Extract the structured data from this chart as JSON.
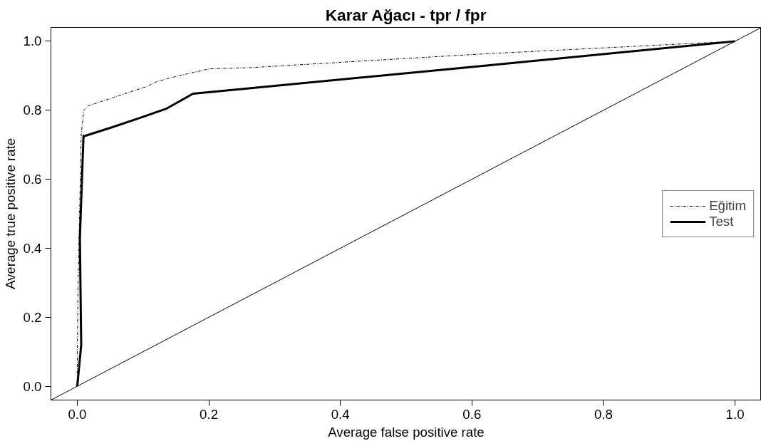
{
  "chart_data": {
    "type": "line",
    "title": "Karar Ağacı - tpr / fpr",
    "xlabel": "Average false positive rate",
    "ylabel": "Average true positive rate",
    "xlim": [
      -0.04,
      1.04
    ],
    "ylim": [
      -0.04,
      1.04
    ],
    "xticks": [
      {
        "value": 0,
        "label": "0.0"
      },
      0.2,
      0.4,
      0.6,
      0.8,
      {
        "value": 1,
        "label": "1.0"
      }
    ],
    "yticks": [
      {
        "value": 0,
        "label": "0.0"
      },
      0.2,
      0.4,
      0.6,
      0.8,
      {
        "value": 1,
        "label": "1.0"
      }
    ],
    "grid": false,
    "legend": "right",
    "series": [
      {
        "name": "Eğitim",
        "color": "#000000",
        "line_style": "dashed",
        "x": [
          0,
          0,
          0.001,
          0.006,
          0.01,
          0.017,
          0.055,
          0.106,
          0.121,
          0.152,
          0.201,
          0.259,
          0.615,
          0.95,
          1
        ],
        "values": [
          0,
          0.083,
          0.27,
          0.73,
          0.8,
          0.813,
          0.837,
          0.869,
          0.883,
          0.899,
          0.92,
          0.923,
          0.963,
          0.995,
          1
        ]
      },
      {
        "name": "Test",
        "color": "#000000",
        "line_style": "solid",
        "x": [
          0,
          0.006,
          0.004,
          0.0095,
          0.011,
          0.055,
          0.094,
          0.136,
          0.176,
          0.247,
          0.625,
          1
        ],
        "values": [
          0,
          0.12,
          0.43,
          0.726,
          0.725,
          0.752,
          0.777,
          0.805,
          0.848,
          0.861,
          0.93,
          1
        ]
      },
      {
        "color": "#000000",
        "line_style": "solid",
        "x": [
          -0.04,
          1.04
        ],
        "values": [
          -0.04,
          1.04
        ]
      }
    ]
  }
}
